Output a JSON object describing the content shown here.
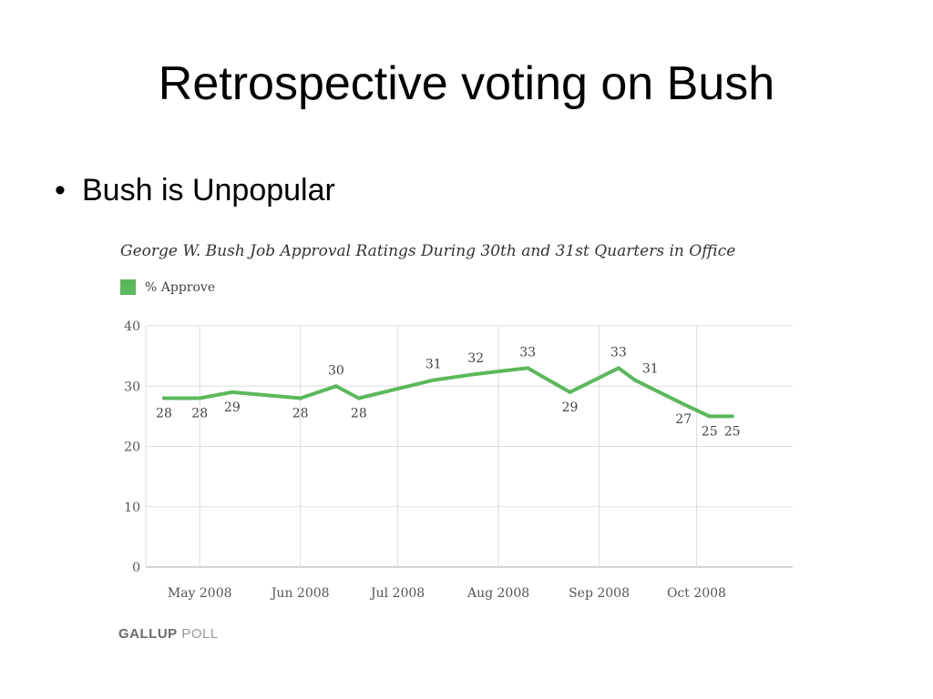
{
  "slide": {
    "title": "Retrospective voting on Bush",
    "bullet": "Bush is Unpopular"
  },
  "source": {
    "bold": "GALLUP",
    "light": "POLL"
  },
  "chart_data": {
    "type": "line",
    "title": "George W. Bush Job Approval Ratings During 30th and 31st Quarters in Office",
    "legend": {
      "placement": "top-left",
      "entries": [
        "% Approve"
      ]
    },
    "xlabel": "",
    "ylabel": "",
    "ylim": [
      0,
      40
    ],
    "yticks": [
      0,
      10,
      20,
      30,
      40
    ],
    "xlim": [
      "2008-04-20",
      "2008-10-25"
    ],
    "xticks": [
      {
        "label": "May 2008",
        "date": "2008-05-01"
      },
      {
        "label": "Jun 2008",
        "date": "2008-06-01"
      },
      {
        "label": "Jul 2008",
        "date": "2008-07-01"
      },
      {
        "label": "Aug 2008",
        "date": "2008-08-01"
      },
      {
        "label": "Sep 2008",
        "date": "2008-09-01"
      },
      {
        "label": "Oct 2008",
        "date": "2008-10-01"
      }
    ],
    "grid": true,
    "color": "#5cb85c",
    "series": [
      {
        "name": "% Approve",
        "points": [
          {
            "x": "2008-04-20",
            "y": 28,
            "label": "28",
            "pos": "below"
          },
          {
            "x": "2008-05-01",
            "y": 28,
            "label": "28",
            "pos": "below"
          },
          {
            "x": "2008-05-11",
            "y": 29,
            "label": "29",
            "pos": "below"
          },
          {
            "x": "2008-06-01",
            "y": 28,
            "label": "28",
            "pos": "below"
          },
          {
            "x": "2008-06-12",
            "y": 30,
            "label": "30",
            "pos": "above"
          },
          {
            "x": "2008-06-19",
            "y": 28,
            "label": "28",
            "pos": "below"
          },
          {
            "x": "2008-07-12",
            "y": 31,
            "label": "31",
            "pos": "above"
          },
          {
            "x": "2008-07-25",
            "y": 32,
            "label": "32",
            "pos": "above"
          },
          {
            "x": "2008-08-10",
            "y": 33,
            "label": "33",
            "pos": "above"
          },
          {
            "x": "2008-08-23",
            "y": 29,
            "label": "29",
            "pos": "below"
          },
          {
            "x": "2008-09-07",
            "y": 33,
            "label": "33",
            "pos": "above"
          },
          {
            "x": "2008-09-12",
            "y": 31,
            "label": "31",
            "pos": "right"
          },
          {
            "x": "2008-09-27",
            "y": 27,
            "label": "27",
            "pos": "below"
          },
          {
            "x": "2008-10-05",
            "y": 25,
            "label": "25",
            "pos": "below"
          },
          {
            "x": "2008-10-12",
            "y": 25,
            "label": "25",
            "pos": "below"
          }
        ]
      }
    ]
  }
}
